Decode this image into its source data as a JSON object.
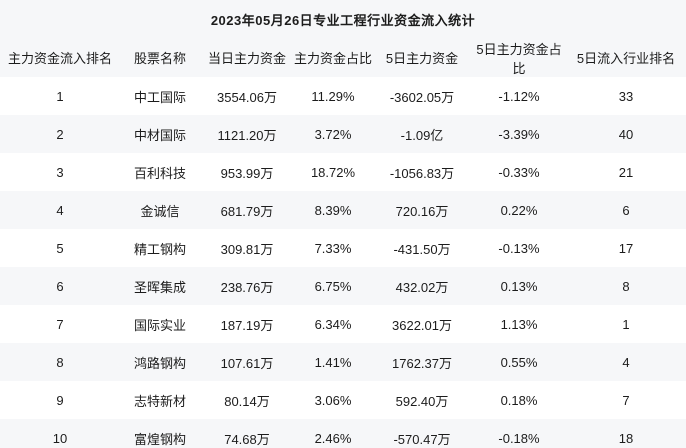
{
  "title": "2023年05月26日专业工程行业资金流入统计",
  "colors": {
    "page_background": "#ffffff",
    "stripe_and_header_background": "#f6f7f9",
    "text": "#1c1c1c"
  },
  "chart_data": {
    "type": "table",
    "title": "2023年05月26日专业工程行业资金流入统计",
    "columns": [
      "主力资金流入排名",
      "股票名称",
      "当日主力资金",
      "主力资金占比",
      "5日主力资金",
      "5日主力资金占比",
      "5日流入行业排名"
    ],
    "rows": [
      [
        "1",
        "中工国际",
        "3554.06万",
        "11.29%",
        "-3602.05万",
        "-1.12%",
        "33"
      ],
      [
        "2",
        "中材国际",
        "1121.20万",
        "3.72%",
        "-1.09亿",
        "-3.39%",
        "40"
      ],
      [
        "3",
        "百利科技",
        "953.99万",
        "18.72%",
        "-1056.83万",
        "-0.33%",
        "21"
      ],
      [
        "4",
        "金诚信",
        "681.79万",
        "8.39%",
        "720.16万",
        "0.22%",
        "6"
      ],
      [
        "5",
        "精工钢构",
        "309.81万",
        "7.33%",
        "-431.50万",
        "-0.13%",
        "17"
      ],
      [
        "6",
        "圣晖集成",
        "238.76万",
        "6.75%",
        "432.02万",
        "0.13%",
        "8"
      ],
      [
        "7",
        "国际实业",
        "187.19万",
        "6.34%",
        "3622.01万",
        "1.13%",
        "1"
      ],
      [
        "8",
        "鸿路钢构",
        "107.61万",
        "1.41%",
        "1762.37万",
        "0.55%",
        "4"
      ],
      [
        "9",
        "志特新材",
        "80.14万",
        "3.06%",
        "592.40万",
        "0.18%",
        "7"
      ],
      [
        "10",
        "富煌钢构",
        "74.68万",
        "2.46%",
        "-570.47万",
        "-0.18%",
        "18"
      ]
    ]
  }
}
